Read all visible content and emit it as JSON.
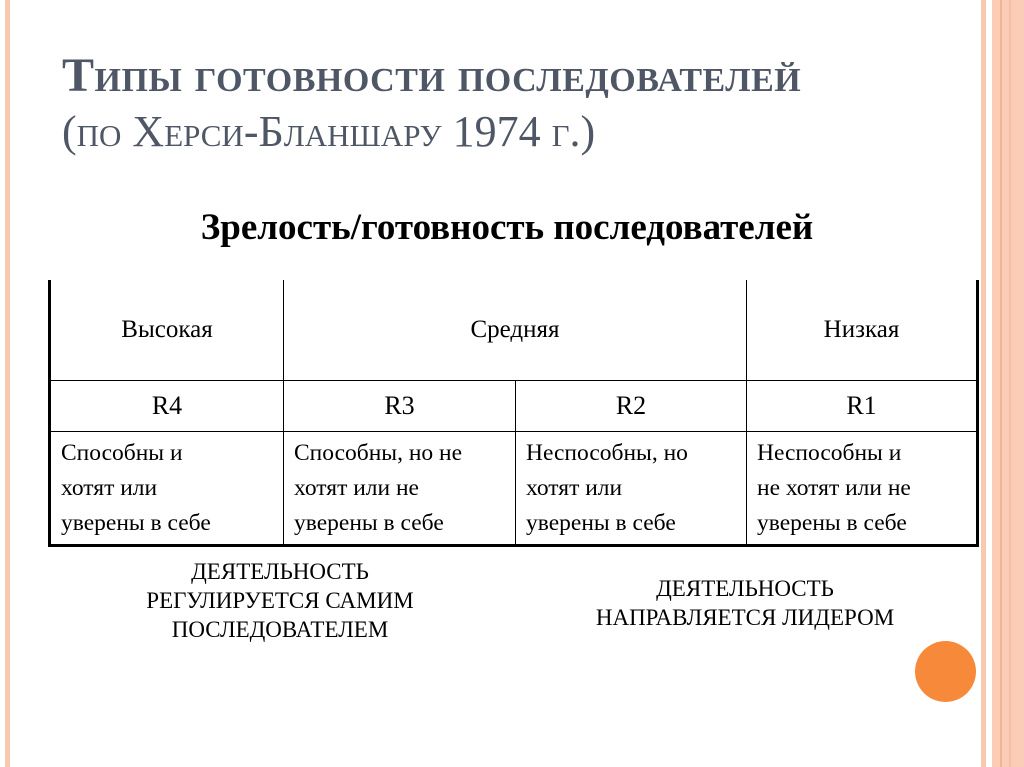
{
  "title": {
    "line1": "Типы готовности последователей",
    "line2": "(по Херси-Бланшару 1974 г.)"
  },
  "subtitle": "Зрелость/готовность последователей",
  "table": {
    "levels": [
      "Высокая",
      "Средняя",
      "Низкая"
    ],
    "codes": [
      "R4",
      "R3",
      "R2",
      "R1"
    ],
    "descriptions": [
      [
        "Способны и",
        "хотят или",
        "уверены в себе"
      ],
      [
        "Способны, но не",
        "хотят или не",
        "уверены в себе"
      ],
      [
        "Неспособны, но",
        "хотят или",
        "уверены в себе"
      ],
      [
        "Неспособны и",
        "не хотят или не",
        "уверены в себе"
      ]
    ]
  },
  "notes": {
    "left": [
      "ДЕЯТЕЛЬНОСТЬ",
      "РЕГУЛИРУЕТСЯ САМИМ",
      "ПОСЛЕДОВАТЕЛЕМ"
    ],
    "right": [
      "ДЕЯТЕЛЬНОСТЬ",
      "НАПРАВЛЯЕТСЯ ЛИДЕРОМ"
    ]
  },
  "colors": {
    "title": "#4f5766",
    "stripe": "#f9c8b0",
    "accent_dot": "#f78a3a"
  }
}
